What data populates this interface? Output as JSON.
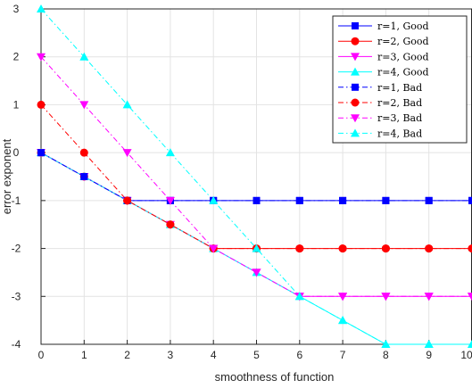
{
  "chart_data": {
    "type": "line",
    "xlabel": "smoothness of function",
    "ylabel": "error exponent",
    "xlim": [
      0,
      10
    ],
    "ylim": [
      -4,
      3
    ],
    "x_ticks": [
      "0",
      "1",
      "2",
      "3",
      "4",
      "5",
      "6",
      "7",
      "8",
      "9",
      "10"
    ],
    "y_ticks": [
      "-4",
      "-3",
      "-2",
      "-1",
      "0",
      "1",
      "2",
      "3"
    ],
    "grid": true,
    "legend_position": "top-right",
    "x": [
      0,
      1,
      2,
      3,
      4,
      5,
      6,
      7,
      8,
      9,
      10
    ],
    "series": [
      {
        "name": "r=1, Good",
        "color": "#0000ff",
        "style": "solid",
        "marker": "square",
        "values": [
          0,
          -0.5,
          -1,
          -1,
          -1,
          -1,
          -1,
          -1,
          -1,
          -1,
          -1
        ]
      },
      {
        "name": "r=2, Good",
        "color": "#ff0000",
        "style": "solid",
        "marker": "circle",
        "values": [
          0,
          -0.5,
          -1,
          -1.5,
          -2,
          -2,
          -2,
          -2,
          -2,
          -2,
          -2
        ]
      },
      {
        "name": "r=3, Good",
        "color": "#ff00ff",
        "style": "solid",
        "marker": "triangle-down",
        "values": [
          0,
          -0.5,
          -1,
          -1.5,
          -2,
          -2.5,
          -3,
          -3,
          -3,
          -3,
          -3
        ]
      },
      {
        "name": "r=4, Good",
        "color": "#00ffff",
        "style": "solid",
        "marker": "triangle-up",
        "values": [
          0,
          -0.5,
          -1,
          -1.5,
          -2,
          -2.5,
          -3,
          -3.5,
          -4,
          -4,
          -4
        ]
      },
      {
        "name": "r=1, Bad",
        "color": "#0000ff",
        "style": "dashdot",
        "marker": "square",
        "values": [
          0,
          -0.5,
          -1,
          -1,
          -1,
          -1,
          -1,
          -1,
          -1,
          -1,
          -1
        ]
      },
      {
        "name": "r=2, Bad",
        "color": "#ff0000",
        "style": "dashdot",
        "marker": "circle",
        "values": [
          1,
          0,
          -1,
          -1.5,
          -2,
          -2,
          -2,
          -2,
          -2,
          -2,
          -2
        ]
      },
      {
        "name": "r=3, Bad",
        "color": "#ff00ff",
        "style": "dashdot",
        "marker": "triangle-down",
        "values": [
          2,
          1,
          0,
          -1,
          -2,
          -2.5,
          -3,
          -3,
          -3,
          -3,
          -3
        ]
      },
      {
        "name": "r=4, Bad",
        "color": "#00ffff",
        "style": "dashdot",
        "marker": "triangle-up",
        "values": [
          3,
          2,
          1,
          0,
          -1,
          -2,
          -3,
          -3.5,
          -4,
          -4,
          -4
        ]
      }
    ]
  }
}
